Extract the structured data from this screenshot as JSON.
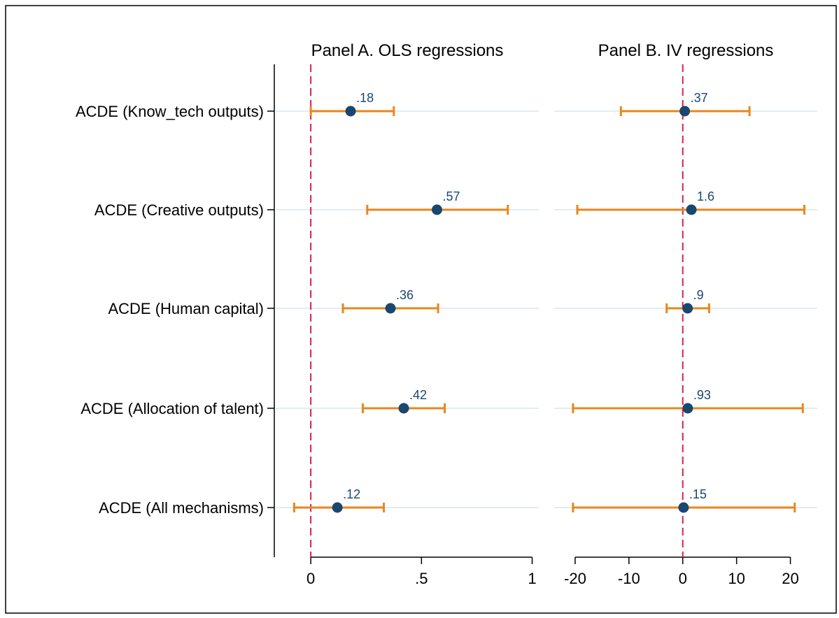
{
  "chart_data": {
    "type": "coefficient-plot",
    "categories": [
      "ACDE (Know_tech outputs)",
      "ACDE (Creative outputs)",
      "ACDE (Human capital)",
      "ACDE (Allocation of talent)",
      "ACDE (All mechanisms)"
    ],
    "panels": [
      {
        "title": "Panel A. OLS regressions",
        "xlim": [
          -0.13,
          1.03
        ],
        "xticks": [
          0,
          0.5,
          1
        ],
        "xtick_labels": [
          "0",
          ".5",
          "1"
        ],
        "reference_line": 0,
        "estimates": [
          {
            "value": 0.18,
            "label": ".18",
            "ci": [
              0.0,
              0.375
            ]
          },
          {
            "value": 0.57,
            "label": ".57",
            "ci": [
              0.255,
              0.89
            ]
          },
          {
            "value": 0.36,
            "label": ".36",
            "ci": [
              0.145,
              0.575
            ]
          },
          {
            "value": 0.42,
            "label": ".42",
            "ci": [
              0.235,
              0.605
            ]
          },
          {
            "value": 0.12,
            "label": ".12",
            "ci": [
              -0.075,
              0.33
            ]
          }
        ]
      },
      {
        "title": "Panel B. IV regressions",
        "xlim": [
          -23.5,
          25
        ],
        "xticks": [
          -20,
          -10,
          0,
          10,
          20
        ],
        "xtick_labels": [
          "-20",
          "-10",
          "0",
          "10",
          "20"
        ],
        "reference_line": 0,
        "estimates": [
          {
            "value": 0.37,
            "label": ".37",
            "ci": [
              -11.5,
              12.4
            ]
          },
          {
            "value": 1.6,
            "label": "1.6",
            "ci": [
              -19.6,
              22.6
            ]
          },
          {
            "value": 0.9,
            "label": ".9",
            "ci": [
              -3.0,
              4.9
            ]
          },
          {
            "value": 0.93,
            "label": ".93",
            "ci": [
              -20.4,
              22.3
            ]
          },
          {
            "value": 0.15,
            "label": ".15",
            "ci": [
              -20.4,
              20.8
            ]
          }
        ]
      }
    ],
    "colors": {
      "point": "#1a476f",
      "ci": "#e8861e",
      "reference_line": "#d6204f",
      "gridline": "#e3ecef",
      "label": "#1a476f"
    },
    "grid": true
  }
}
